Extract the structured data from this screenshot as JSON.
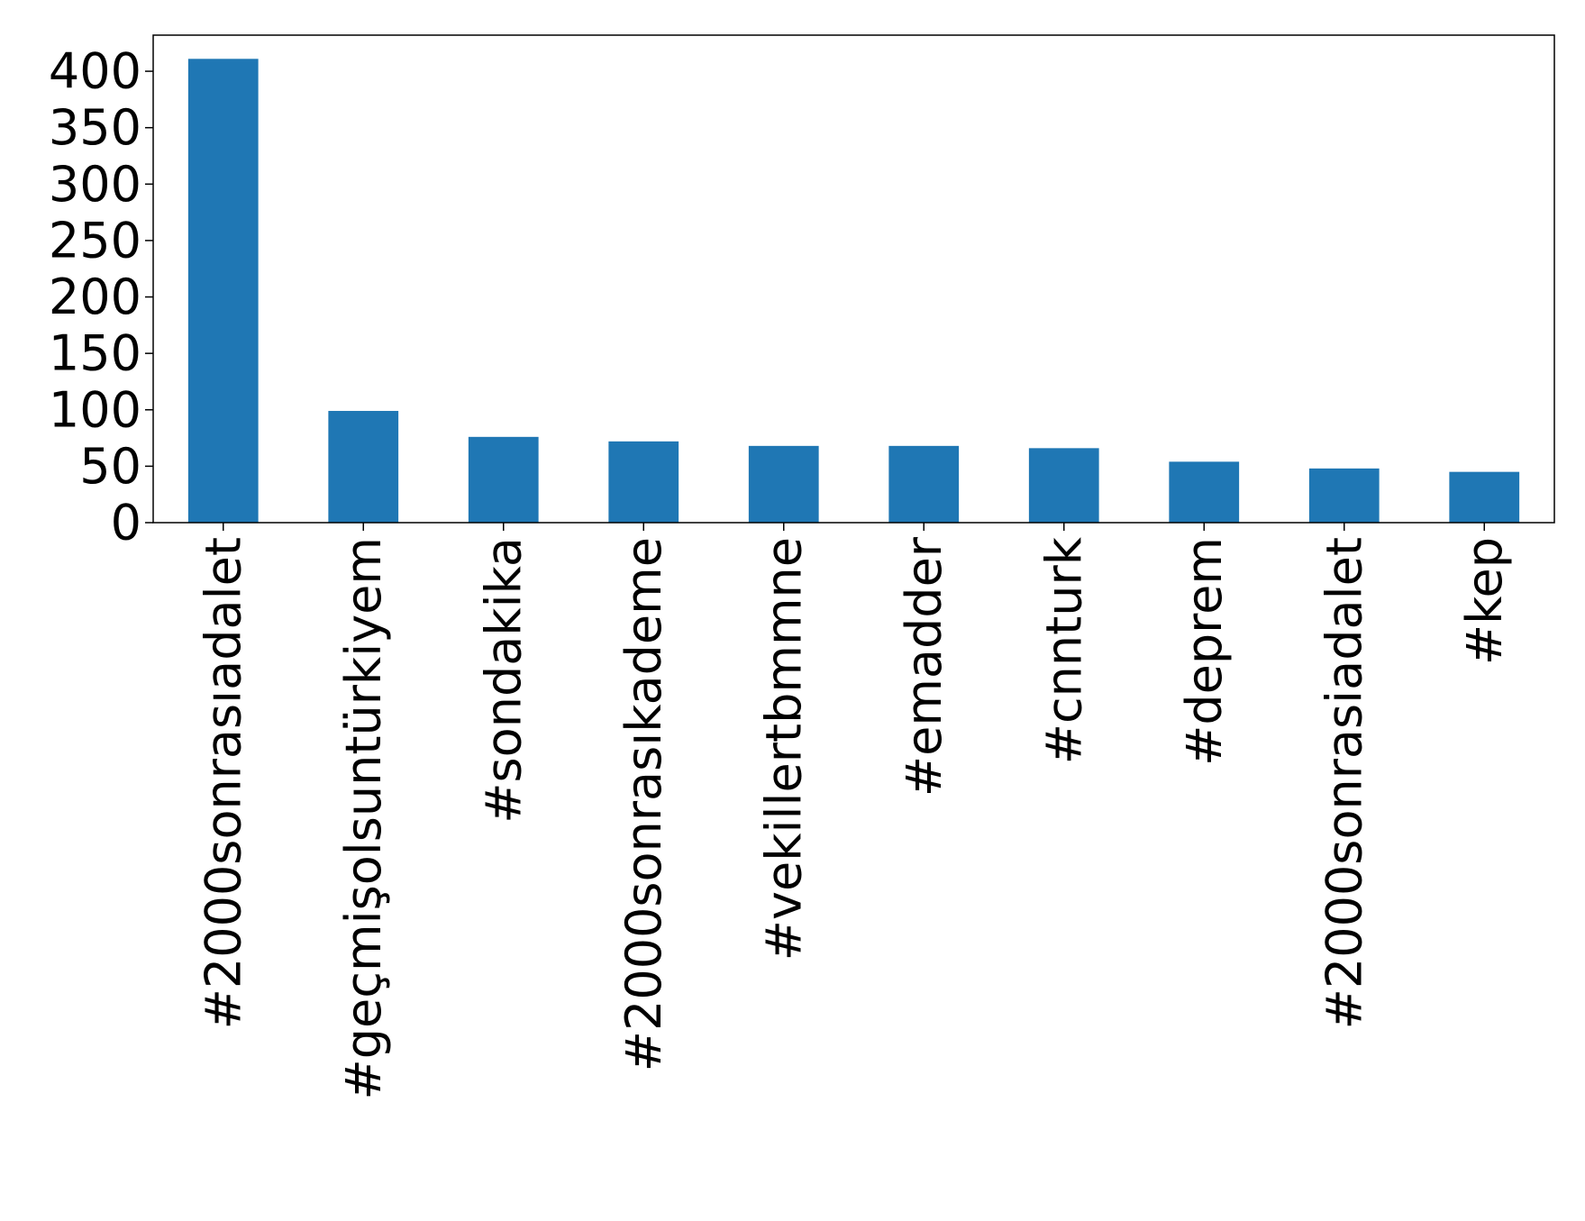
{
  "chart_data": {
    "type": "bar",
    "title": "",
    "xlabel": "",
    "ylabel": "",
    "categories": [
      "#2000sonrasıadalet",
      "#geçmişolsuntürkiyem",
      "#sondakika",
      "#2000sonrasıkademe",
      "#vekillertbmmne",
      "#emadder",
      "#cnnturk",
      "#deprem",
      "#2000sonrasiadalet",
      "#kep"
    ],
    "values": [
      411,
      99,
      76,
      72,
      68,
      68,
      66,
      54,
      48,
      45
    ],
    "ylim": [
      0,
      432
    ],
    "yticks": [
      0,
      50,
      100,
      150,
      200,
      250,
      300,
      350,
      400
    ],
    "grid": false,
    "legend": "none",
    "bar_color": "#1f77b4"
  }
}
